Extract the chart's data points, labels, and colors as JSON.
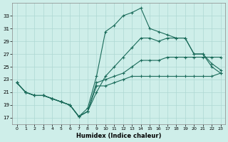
{
  "xlabel": "Humidex (Indice chaleur)",
  "background_color": "#ceeee9",
  "grid_color": "#aed8d3",
  "line_color": "#1a6b5a",
  "x_ticks": [
    0,
    1,
    2,
    3,
    4,
    5,
    6,
    7,
    8,
    9,
    10,
    11,
    12,
    13,
    14,
    15,
    16,
    17,
    18,
    19,
    20,
    21,
    22,
    23
  ],
  "y_ticks": [
    17,
    19,
    21,
    23,
    25,
    27,
    29,
    31,
    33
  ],
  "ylim": [
    16.0,
    35.0
  ],
  "xlim": [
    -0.5,
    23.5
  ],
  "line1_x": [
    0,
    1,
    2,
    3,
    4,
    5,
    6,
    7,
    8,
    9,
    10,
    11,
    12,
    13,
    14,
    15,
    16,
    17,
    18,
    19,
    20,
    21,
    22,
    23
  ],
  "line1_y": [
    22.5,
    21.0,
    20.5,
    20.5,
    20.0,
    19.5,
    19.0,
    17.2,
    18.5,
    23.5,
    30.5,
    31.5,
    33.0,
    33.5,
    34.2,
    31.0,
    30.5,
    30.0,
    29.5,
    29.5,
    27.0,
    27.0,
    25.0,
    24.0
  ],
  "line2_x": [
    0,
    1,
    2,
    3,
    4,
    5,
    6,
    7,
    8,
    9,
    10,
    11,
    12,
    13,
    14,
    15,
    16,
    17,
    18,
    19,
    20,
    21,
    22,
    23
  ],
  "line2_y": [
    22.5,
    21.0,
    20.5,
    20.5,
    20.0,
    19.5,
    19.0,
    17.2,
    18.0,
    21.0,
    23.5,
    25.0,
    26.5,
    28.0,
    29.5,
    29.5,
    29.0,
    29.5,
    29.5,
    29.5,
    27.0,
    27.0,
    25.5,
    24.5
  ],
  "line3_x": [
    0,
    1,
    2,
    3,
    4,
    5,
    6,
    7,
    8,
    9,
    10,
    11,
    12,
    13,
    14,
    15,
    16,
    17,
    18,
    19,
    20,
    21,
    22,
    23
  ],
  "line3_y": [
    22.5,
    21.0,
    20.5,
    20.5,
    20.0,
    19.5,
    19.0,
    17.2,
    18.0,
    22.5,
    23.0,
    23.5,
    24.0,
    25.0,
    26.0,
    26.0,
    26.0,
    26.5,
    26.5,
    26.5,
    26.5,
    26.5,
    26.5,
    26.5
  ],
  "line4_x": [
    0,
    1,
    2,
    3,
    4,
    5,
    6,
    7,
    8,
    9,
    10,
    11,
    12,
    13,
    14,
    15,
    16,
    17,
    18,
    19,
    20,
    21,
    22,
    23
  ],
  "line4_y": [
    22.5,
    21.0,
    20.5,
    20.5,
    20.0,
    19.5,
    19.0,
    17.2,
    18.0,
    22.0,
    22.0,
    22.5,
    23.0,
    23.5,
    23.5,
    23.5,
    23.5,
    23.5,
    23.5,
    23.5,
    23.5,
    23.5,
    23.5,
    24.0
  ]
}
